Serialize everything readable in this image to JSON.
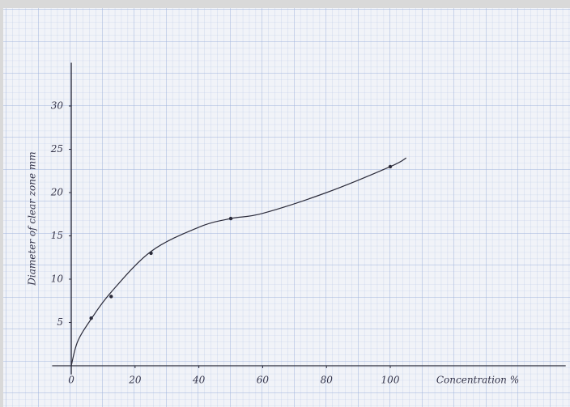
{
  "chart_data": {
    "type": "scatter",
    "x_label": "Concentration %",
    "y_label": "Diameter of clear zone mm",
    "x": [
      6.25,
      12.5,
      25,
      50,
      100
    ],
    "values": [
      5.5,
      8,
      13,
      17,
      23
    ],
    "color": "#2b2b3a",
    "curve": {
      "x": [
        0,
        2,
        6.25,
        12.5,
        25,
        40,
        50,
        60,
        80,
        100,
        105
      ],
      "y": [
        0,
        2.8,
        5.4,
        8.5,
        13.2,
        16,
        17,
        17.6,
        20,
        23,
        24
      ]
    },
    "xlim": [
      -6,
      155
    ],
    "ylim": [
      -1,
      35
    ],
    "xticks": [
      0,
      20,
      40,
      60,
      80,
      100
    ],
    "yticks": [
      5,
      10,
      15,
      20,
      25,
      30
    ]
  }
}
